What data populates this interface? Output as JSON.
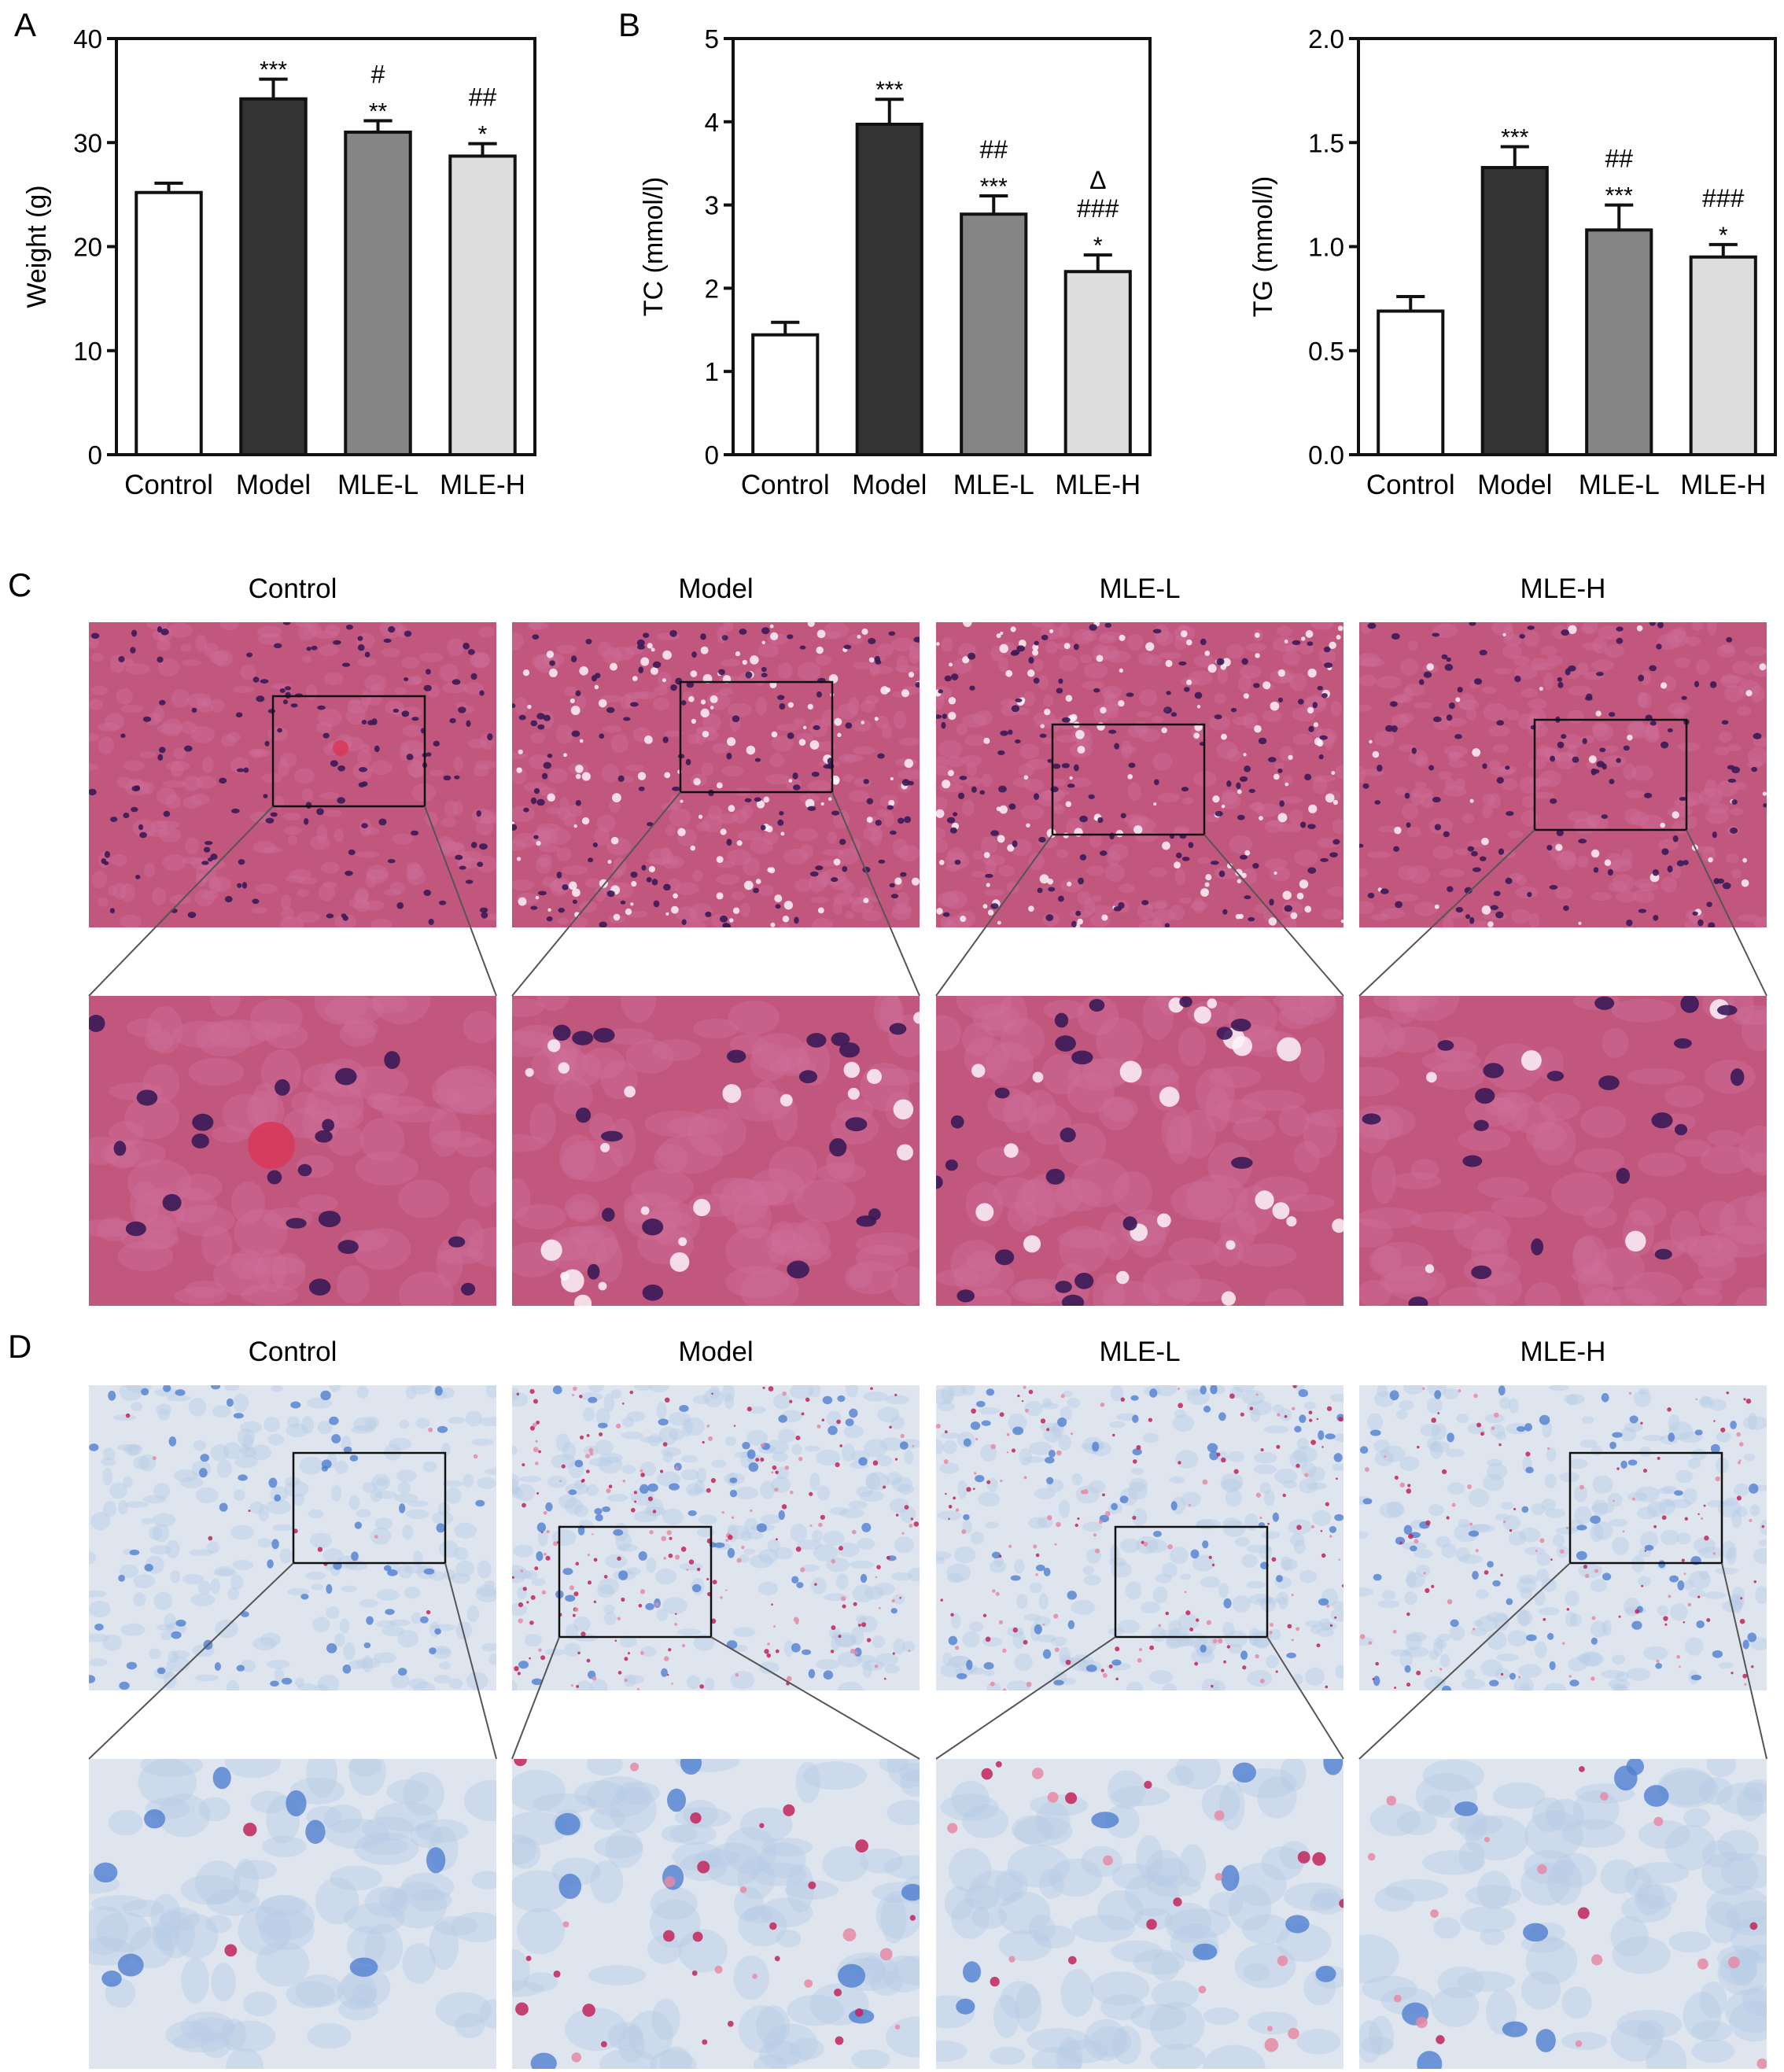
{
  "panel_labels": [
    "A",
    "B",
    "C",
    "D"
  ],
  "chart_data": [
    {
      "type": "bar",
      "categories": [
        "Control",
        "Model",
        "MLE-L",
        "MLE-H"
      ],
      "values": [
        25.2,
        34.2,
        31.0,
        28.7
      ],
      "errors": [
        0.9,
        1.9,
        1.1,
        1.2
      ],
      "annotations": [
        [],
        [
          "***"
        ],
        [
          "#",
          "**"
        ],
        [
          "##",
          "*"
        ]
      ],
      "ylabel": "Weight (g)",
      "ylim": [
        0,
        40
      ],
      "yticks": [
        "0",
        "10",
        "20",
        "30",
        "40"
      ],
      "colors": [
        "#ffffff",
        "#333333",
        "#858585",
        "#dddddd"
      ]
    },
    {
      "type": "bar",
      "categories": [
        "Control",
        "Model",
        "MLE-L",
        "MLE-H"
      ],
      "values": [
        1.44,
        3.97,
        2.89,
        2.2
      ],
      "errors": [
        0.15,
        0.3,
        0.22,
        0.2
      ],
      "annotations": [
        [],
        [
          "***"
        ],
        [
          "##",
          "***"
        ],
        [
          "Δ",
          "###",
          "*"
        ]
      ],
      "ylabel": "TC (mmol/l)",
      "ylim": [
        0,
        5
      ],
      "yticks": [
        "0",
        "1",
        "2",
        "3",
        "4",
        "5"
      ],
      "colors": [
        "#ffffff",
        "#333333",
        "#858585",
        "#dddddd"
      ]
    },
    {
      "type": "bar",
      "categories": [
        "Control",
        "Model",
        "MLE-L",
        "MLE-H"
      ],
      "values": [
        0.69,
        1.38,
        1.08,
        0.95
      ],
      "errors": [
        0.07,
        0.1,
        0.12,
        0.06
      ],
      "annotations": [
        [],
        [
          "***"
        ],
        [
          "##",
          "***"
        ],
        [
          "###",
          "*"
        ]
      ],
      "ylabel": "TG (mmol/l)",
      "ylim": [
        0,
        2
      ],
      "yticks": [
        "0.0",
        "0.5",
        "1.0",
        "1.5",
        "2.0"
      ],
      "colors": [
        "#ffffff",
        "#333333",
        "#858585",
        "#dddddd"
      ]
    }
  ],
  "panel_c": {
    "titles": [
      "Control",
      "Model",
      "MLE-L",
      "MLE-H"
    ],
    "colors": {
      "bg": "#c2577e",
      "mid": "#cf6f98",
      "light": "#e9bcd0",
      "nucleus": "#3a1a57",
      "vacuole": "#fbf3f8",
      "vessel": "#d83a5a"
    }
  },
  "panel_d": {
    "titles": [
      "Control",
      "Model",
      "MLE-L",
      "MLE-H"
    ],
    "colors": {
      "bg": "#dfe5ef",
      "mid": "#b9cbe6",
      "nucleus": "#4f7fd0",
      "lipid": "#c2245a",
      "pink": "#e88aa4"
    }
  }
}
